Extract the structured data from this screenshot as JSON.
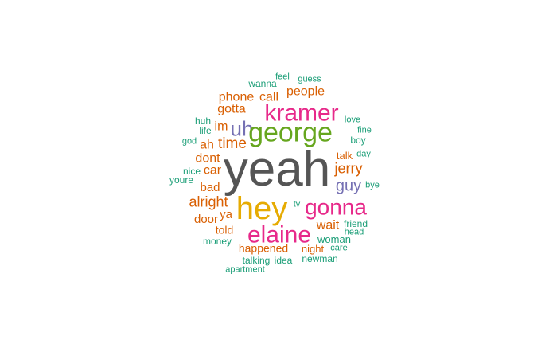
{
  "colors": {
    "teal": "#1b9e77",
    "orange": "#d95f02",
    "purple": "#7570b3",
    "magenta": "#e7298a",
    "green": "#66a61e",
    "gold": "#e6ab02",
    "gray": "#555555"
  },
  "words": [
    {
      "id": "feel",
      "text": "feel",
      "color": "teal"
    },
    {
      "id": "wanna",
      "text": "wanna",
      "color": "teal"
    },
    {
      "id": "guess",
      "text": "guess",
      "color": "teal"
    },
    {
      "id": "people",
      "text": "people",
      "color": "orange"
    },
    {
      "id": "phone",
      "text": "phone",
      "color": "orange"
    },
    {
      "id": "call",
      "text": "call",
      "color": "orange"
    },
    {
      "id": "gotta",
      "text": "gotta",
      "color": "orange"
    },
    {
      "id": "kramer",
      "text": "kramer",
      "color": "magenta"
    },
    {
      "id": "love",
      "text": "love",
      "color": "teal"
    },
    {
      "id": "huh",
      "text": "huh",
      "color": "teal"
    },
    {
      "id": "life",
      "text": "life",
      "color": "teal"
    },
    {
      "id": "im",
      "text": "im",
      "color": "orange"
    },
    {
      "id": "uh",
      "text": "uh",
      "color": "purple"
    },
    {
      "id": "george",
      "text": "george",
      "color": "green"
    },
    {
      "id": "fine",
      "text": "fine",
      "color": "teal"
    },
    {
      "id": "boy",
      "text": "boy",
      "color": "teal"
    },
    {
      "id": "god",
      "text": "god",
      "color": "teal"
    },
    {
      "id": "ah",
      "text": "ah",
      "color": "orange"
    },
    {
      "id": "time",
      "text": "time",
      "color": "orange"
    },
    {
      "id": "talk",
      "text": "talk",
      "color": "orange"
    },
    {
      "id": "day",
      "text": "day",
      "color": "teal"
    },
    {
      "id": "dont",
      "text": "dont",
      "color": "orange"
    },
    {
      "id": "yeah",
      "text": "yeah",
      "color": "gray"
    },
    {
      "id": "jerry",
      "text": "jerry",
      "color": "orange"
    },
    {
      "id": "nice",
      "text": "nice",
      "color": "teal"
    },
    {
      "id": "car",
      "text": "car",
      "color": "orange"
    },
    {
      "id": "youre",
      "text": "youre",
      "color": "teal"
    },
    {
      "id": "bad",
      "text": "bad",
      "color": "orange"
    },
    {
      "id": "guy",
      "text": "guy",
      "color": "purple"
    },
    {
      "id": "bye",
      "text": "bye",
      "color": "teal"
    },
    {
      "id": "alright",
      "text": "alright",
      "color": "orange"
    },
    {
      "id": "hey",
      "text": "hey",
      "color": "gold"
    },
    {
      "id": "gonna",
      "text": "gonna",
      "color": "magenta"
    },
    {
      "id": "tv",
      "text": "tv",
      "color": "teal"
    },
    {
      "id": "ya",
      "text": "ya",
      "color": "orange"
    },
    {
      "id": "door",
      "text": "door",
      "color": "orange"
    },
    {
      "id": "wait",
      "text": "wait",
      "color": "orange"
    },
    {
      "id": "friend",
      "text": "friend",
      "color": "teal"
    },
    {
      "id": "told",
      "text": "told",
      "color": "orange"
    },
    {
      "id": "elaine",
      "text": "elaine",
      "color": "magenta"
    },
    {
      "id": "head",
      "text": "head",
      "color": "teal"
    },
    {
      "id": "money",
      "text": "money",
      "color": "teal"
    },
    {
      "id": "woman",
      "text": "woman",
      "color": "teal"
    },
    {
      "id": "happened",
      "text": "happened",
      "color": "orange"
    },
    {
      "id": "night",
      "text": "night",
      "color": "orange"
    },
    {
      "id": "care",
      "text": "care",
      "color": "teal"
    },
    {
      "id": "talking",
      "text": "talking",
      "color": "teal"
    },
    {
      "id": "idea",
      "text": "idea",
      "color": "teal"
    },
    {
      "id": "newman",
      "text": "newman",
      "color": "teal"
    },
    {
      "id": "apartment",
      "text": "apartment",
      "color": "teal"
    }
  ]
}
